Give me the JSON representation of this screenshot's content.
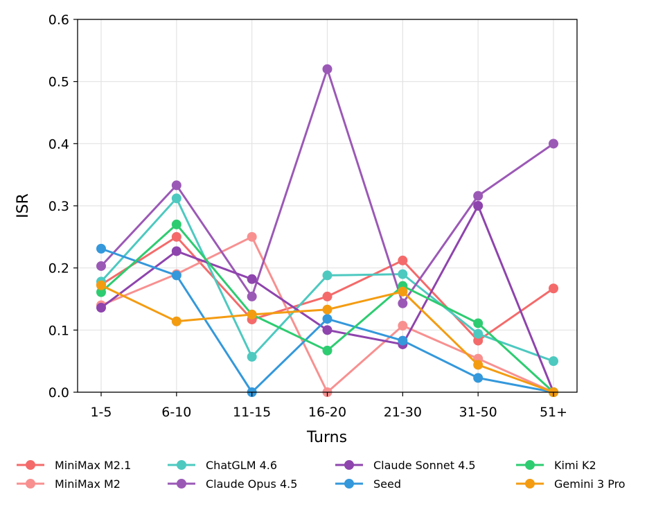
{
  "chart_data": {
    "type": "line",
    "title": "",
    "xlabel": "Turns",
    "ylabel": "ISR",
    "categories": [
      "1-5",
      "6-10",
      "11-15",
      "16-20",
      "21-30",
      "31-50",
      "51+"
    ],
    "ylim": [
      0,
      0.6
    ],
    "yticks": [
      "0.0",
      "0.1",
      "0.2",
      "0.3",
      "0.4",
      "0.5",
      "0.6"
    ],
    "grid": true,
    "legend_position": "bottom",
    "series": [
      {
        "name": "MiniMax M2.1",
        "color": "#F46A6A",
        "values": [
          0.173,
          0.25,
          0.117,
          0.154,
          0.212,
          0.083,
          0.167
        ]
      },
      {
        "name": "MiniMax M2",
        "color": "#F89090",
        "values": [
          0.14,
          0.19,
          0.25,
          0.0,
          0.107,
          0.054,
          0.0
        ]
      },
      {
        "name": "ChatGLM 4.6",
        "color": "#4DC9C0",
        "values": [
          0.178,
          0.312,
          0.057,
          0.188,
          0.19,
          0.094,
          0.05
        ]
      },
      {
        "name": "Claude Opus 4.5",
        "color": "#9B59B6",
        "values": [
          0.203,
          0.333,
          0.154,
          0.52,
          0.143,
          0.316,
          0.4
        ]
      },
      {
        "name": "Claude Sonnet 4.5",
        "color": "#8E44AD",
        "values": [
          0.136,
          0.227,
          0.182,
          0.1,
          0.077,
          0.3,
          0.0
        ]
      },
      {
        "name": "Seed",
        "color": "#3498DB",
        "values": [
          0.231,
          0.188,
          0.0,
          0.118,
          0.083,
          0.023,
          0.0
        ]
      },
      {
        "name": "Kimi K2",
        "color": "#2ECC71",
        "values": [
          0.161,
          0.27,
          0.125,
          0.067,
          0.171,
          0.111,
          0.0
        ]
      },
      {
        "name": "Gemini 3 Pro",
        "color": "#F39C12",
        "values": [
          0.172,
          0.114,
          0.125,
          0.133,
          0.162,
          0.044,
          0.0
        ]
      }
    ]
  }
}
